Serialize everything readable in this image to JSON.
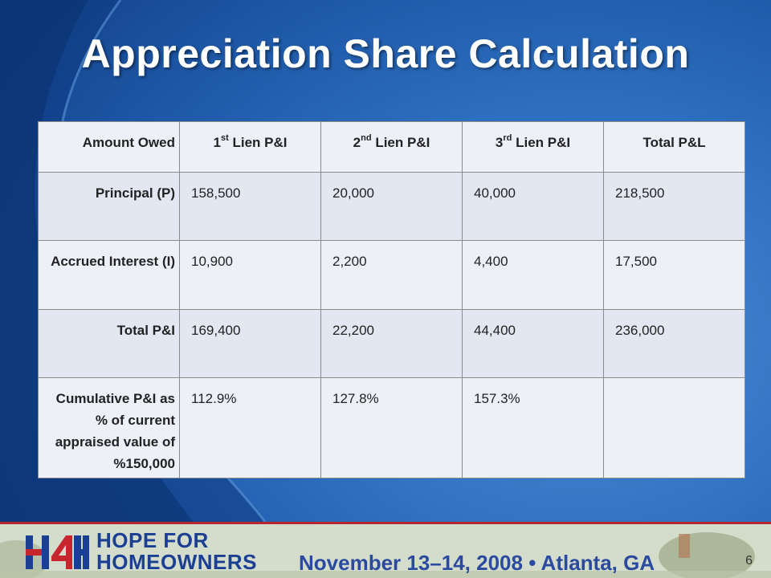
{
  "slide": {
    "title": "Appreciation Share Calculation",
    "page_number": "6"
  },
  "table": {
    "header": {
      "row_label": "Amount Owed",
      "col1_ord": "1",
      "col1_sup": "st",
      "col1_rest": " Lien P&I",
      "col2_ord": "2",
      "col2_sup": "nd",
      "col2_rest": " Lien P&I",
      "col3_ord": "3",
      "col3_sup": "rd",
      "col3_rest": " Lien P&I",
      "col4": "Total P&L"
    },
    "rows": [
      {
        "label": "Principal (P)",
        "values": [
          "158,500",
          "20,000",
          "40,000",
          "218,500"
        ]
      },
      {
        "label": "Accrued Interest (I)",
        "values": [
          "10,900",
          "2,200",
          "4,400",
          "17,500"
        ]
      },
      {
        "label": "Total P&I",
        "values": [
          "169,400",
          "22,200",
          "44,400",
          "236,000"
        ]
      },
      {
        "label": "Cumulative P&I as % of current appraised value of %150,000",
        "values": [
          "112.9%",
          "127.8%",
          "157.3%",
          ""
        ]
      }
    ]
  },
  "footer": {
    "logo_text": "H4H",
    "line1": "HOPE FOR",
    "line2": "HOMEOWNERS",
    "event": "November 13–14, 2008 • Atlanta, GA"
  },
  "colors": {
    "title": "#ffffff",
    "footer_text": "#1b3f93",
    "footer_rule": "#b8252f",
    "logo_red": "#c8262f",
    "logo_blue": "#1b3f93"
  }
}
